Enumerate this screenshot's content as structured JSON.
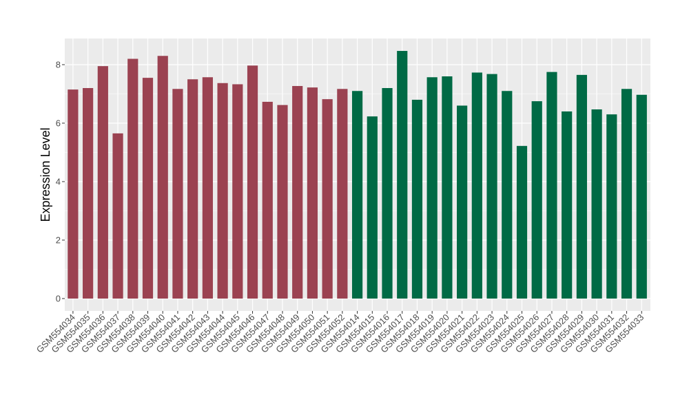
{
  "chart_data": {
    "type": "bar",
    "title": "",
    "xlabel": "",
    "ylabel": "Expression Level",
    "ylim": [
      0,
      8.9
    ],
    "yticks": [
      0,
      2,
      4,
      6,
      8
    ],
    "grid": true,
    "legend": "none",
    "categories": [
      "GSM554034",
      "GSM554035",
      "GSM554036",
      "GSM554037",
      "GSM554038",
      "GSM554039",
      "GSM554040",
      "GSM554041",
      "GSM554042",
      "GSM554043",
      "GSM554044",
      "GSM554045",
      "GSM554046",
      "GSM554047",
      "GSM554048",
      "GSM554049",
      "GSM554050",
      "GSM554051",
      "GSM554052",
      "GSM554014",
      "GSM554015",
      "GSM554016",
      "GSM554017",
      "GSM554018",
      "GSM554019",
      "GSM554020",
      "GSM554021",
      "GSM554022",
      "GSM554023",
      "GSM554024",
      "GSM554025",
      "GSM554026",
      "GSM554027",
      "GSM554028",
      "GSM554029",
      "GSM554030",
      "GSM554031",
      "GSM554032",
      "GSM554033"
    ],
    "values": [
      7.15,
      7.2,
      7.95,
      5.65,
      8.2,
      7.55,
      8.3,
      7.17,
      7.5,
      7.57,
      7.37,
      7.33,
      7.97,
      6.73,
      6.62,
      7.27,
      7.22,
      6.82,
      7.17,
      7.1,
      6.23,
      7.2,
      8.47,
      6.8,
      7.57,
      7.6,
      6.6,
      7.73,
      7.68,
      7.1,
      5.22,
      6.75,
      7.75,
      6.4,
      7.65,
      6.47,
      6.3,
      7.17,
      6.97
    ],
    "groups": [
      "a",
      "a",
      "a",
      "a",
      "a",
      "a",
      "a",
      "a",
      "a",
      "a",
      "a",
      "a",
      "a",
      "a",
      "a",
      "a",
      "a",
      "a",
      "a",
      "b",
      "b",
      "b",
      "b",
      "b",
      "b",
      "b",
      "b",
      "b",
      "b",
      "b",
      "b",
      "b",
      "b",
      "b",
      "b",
      "b",
      "b",
      "b",
      "b"
    ],
    "colors": {
      "a": "#9b4251",
      "b": "#006a45"
    },
    "panel_background": "#ebebeb",
    "gridline_color": "#ffffff"
  }
}
